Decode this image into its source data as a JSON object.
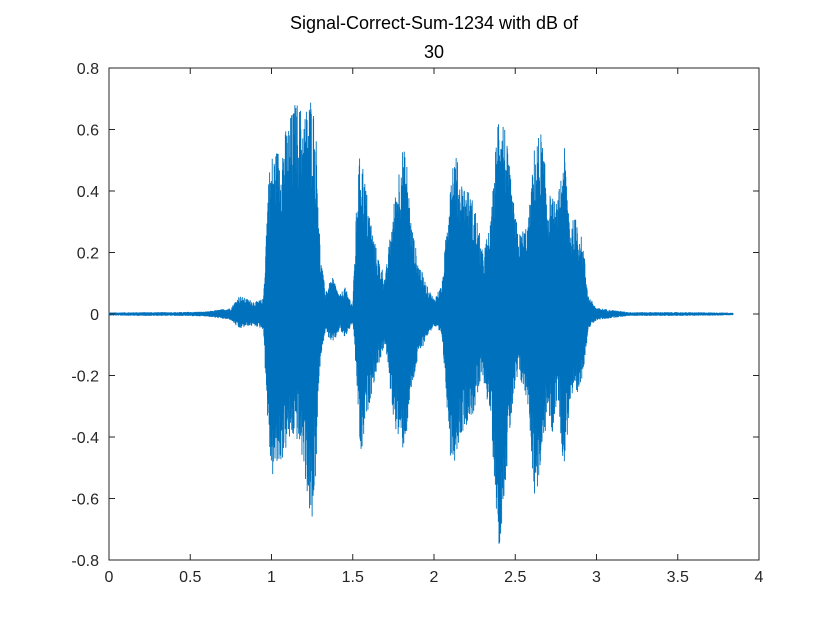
{
  "chart_data": {
    "type": "line",
    "title_lines": [
      "Signal-Correct-Sum-1234 with dB of",
      "30"
    ],
    "xlabel": "",
    "ylabel": "",
    "xlim": [
      0,
      4
    ],
    "ylim": [
      -0.8,
      0.8
    ],
    "xticks": [
      {
        "value": 0,
        "label": "0"
      },
      {
        "value": 0.5,
        "label": "0.5"
      },
      {
        "value": 1,
        "label": "1"
      },
      {
        "value": 1.5,
        "label": "1.5"
      },
      {
        "value": 2,
        "label": "2"
      },
      {
        "value": 2.5,
        "label": "2.5"
      },
      {
        "value": 3,
        "label": "3"
      },
      {
        "value": 3.5,
        "label": "3.5"
      },
      {
        "value": 4,
        "label": "4"
      }
    ],
    "yticks": [
      {
        "value": 0.8,
        "label": "0.8"
      },
      {
        "value": 0.6,
        "label": "0.6"
      },
      {
        "value": 0.4,
        "label": "0.4"
      },
      {
        "value": 0.2,
        "label": "0.2"
      },
      {
        "value": 0,
        "label": "0"
      },
      {
        "value": -0.2,
        "label": "-0.2"
      },
      {
        "value": -0.4,
        "label": "-0.4"
      },
      {
        "value": -0.6,
        "label": "-0.6"
      },
      {
        "value": -0.8,
        "label": "-0.8"
      }
    ],
    "grid": false,
    "series": [
      {
        "color": "#0072BD",
        "envelope": {
          "x": [
            0.0,
            0.2,
            0.4,
            0.6,
            0.75,
            0.8,
            0.85,
            0.9,
            0.95,
            0.98,
            1.0,
            1.05,
            1.1,
            1.15,
            1.2,
            1.25,
            1.28,
            1.3,
            1.33,
            1.38,
            1.42,
            1.45,
            1.5,
            1.53,
            1.55,
            1.58,
            1.62,
            1.65,
            1.7,
            1.75,
            1.8,
            1.83,
            1.86,
            1.9,
            1.95,
            2.0,
            2.05,
            2.08,
            2.1,
            2.13,
            2.16,
            2.2,
            2.25,
            2.3,
            2.35,
            2.4,
            2.43,
            2.45,
            2.48,
            2.52,
            2.58,
            2.62,
            2.66,
            2.7,
            2.73,
            2.76,
            2.8,
            2.84,
            2.88,
            2.92,
            2.95,
            3.0,
            3.2,
            3.5,
            3.75,
            3.84
          ],
          "upper": [
            0.005,
            0.006,
            0.006,
            0.008,
            0.02,
            0.06,
            0.05,
            0.04,
            0.05,
            0.45,
            0.52,
            0.55,
            0.62,
            0.7,
            0.66,
            0.73,
            0.55,
            0.2,
            0.08,
            0.12,
            0.06,
            0.09,
            0.03,
            0.45,
            0.55,
            0.42,
            0.28,
            0.2,
            0.12,
            0.35,
            0.55,
            0.52,
            0.3,
            0.18,
            0.1,
            0.05,
            0.1,
            0.3,
            0.5,
            0.54,
            0.45,
            0.42,
            0.36,
            0.2,
            0.3,
            0.72,
            0.65,
            0.55,
            0.4,
            0.26,
            0.3,
            0.56,
            0.6,
            0.4,
            0.38,
            0.36,
            0.56,
            0.3,
            0.32,
            0.22,
            0.06,
            0.02,
            0.006,
            0.006,
            0.005,
            0.004
          ],
          "lower": [
            -0.005,
            -0.006,
            -0.006,
            -0.008,
            -0.02,
            -0.05,
            -0.04,
            -0.04,
            -0.05,
            -0.4,
            -0.54,
            -0.5,
            -0.43,
            -0.4,
            -0.5,
            -0.73,
            -0.45,
            -0.15,
            -0.06,
            -0.1,
            -0.05,
            -0.08,
            -0.03,
            -0.28,
            -0.5,
            -0.35,
            -0.25,
            -0.18,
            -0.1,
            -0.34,
            -0.46,
            -0.4,
            -0.26,
            -0.15,
            -0.08,
            -0.04,
            -0.08,
            -0.3,
            -0.46,
            -0.48,
            -0.4,
            -0.36,
            -0.32,
            -0.2,
            -0.35,
            -0.78,
            -0.6,
            -0.5,
            -0.32,
            -0.2,
            -0.3,
            -0.62,
            -0.5,
            -0.32,
            -0.4,
            -0.26,
            -0.52,
            -0.28,
            -0.3,
            -0.18,
            -0.05,
            -0.02,
            -0.006,
            -0.006,
            -0.005,
            -0.004
          ]
        }
      }
    ]
  }
}
